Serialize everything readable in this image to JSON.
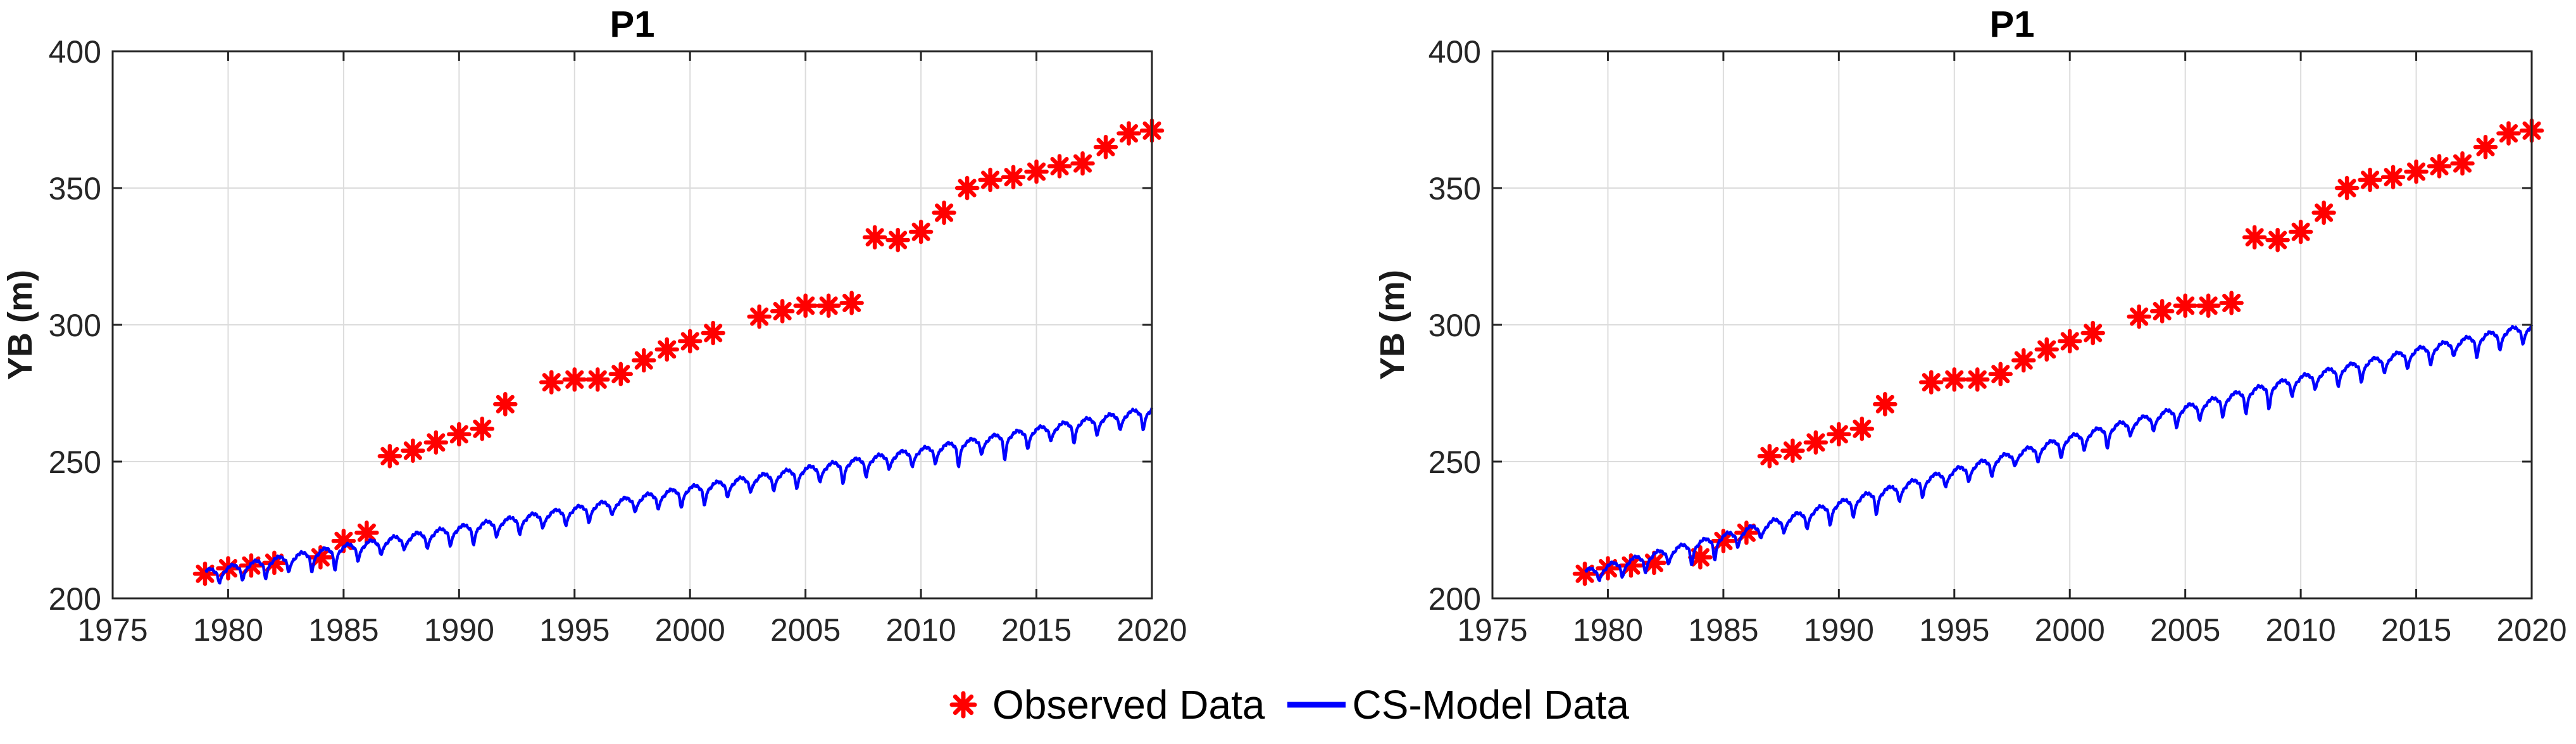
{
  "figure": {
    "background": "#ffffff",
    "axis_color": "#262626",
    "grid_color": "#dcdcdc",
    "observed_color": "#ff0000",
    "model_color": "#0000ff"
  },
  "legend": {
    "items": [
      {
        "marker": "asterisk",
        "color": "#ff0000",
        "label": "Observed Data"
      },
      {
        "marker": "line",
        "color": "#0000ff",
        "label": "CS-Model Data"
      }
    ]
  },
  "chart_data": [
    {
      "type": "line+scatter",
      "title": "P1",
      "xlabel": "",
      "ylabel": "YB (m)",
      "xlim": [
        1975,
        2020
      ],
      "ylim": [
        200,
        400
      ],
      "xticks": [
        1975,
        1980,
        1985,
        1990,
        1995,
        2000,
        2005,
        2010,
        2015,
        2020
      ],
      "yticks": [
        200,
        250,
        300,
        350,
        400
      ],
      "grid": true,
      "legend_position": "south-outside-shared",
      "series": [
        {
          "name": "Observed Data",
          "type": "scatter",
          "marker": "asterisk",
          "color": "#ff0000",
          "points": [
            [
              1979,
              209
            ],
            [
              1980,
              211
            ],
            [
              1981,
              212
            ],
            [
              1982,
              213
            ],
            [
              1984,
              215
            ],
            [
              1985,
              221
            ],
            [
              1986,
              224
            ],
            [
              1987,
              252
            ],
            [
              1988,
              254
            ],
            [
              1989,
              257
            ],
            [
              1990,
              260
            ],
            [
              1991,
              262
            ],
            [
              1992,
              271
            ],
            [
              1994,
              279
            ],
            [
              1995,
              280
            ],
            [
              1996,
              280
            ],
            [
              1997,
              282
            ],
            [
              1998,
              287
            ],
            [
              1999,
              291
            ],
            [
              2000,
              294
            ],
            [
              2001,
              297
            ],
            [
              2003,
              303
            ],
            [
              2004,
              305
            ],
            [
              2005,
              307
            ],
            [
              2006,
              307
            ],
            [
              2007,
              308
            ],
            [
              2008,
              332
            ],
            [
              2009,
              331
            ],
            [
              2010,
              334
            ],
            [
              2011,
              341
            ],
            [
              2012,
              350
            ],
            [
              2013,
              353
            ],
            [
              2014,
              354
            ],
            [
              2015,
              356
            ],
            [
              2016,
              358
            ],
            [
              2017,
              359
            ],
            [
              2018,
              365
            ],
            [
              2019,
              370
            ],
            [
              2020,
              371
            ]
          ]
        },
        {
          "name": "CS-Model Data",
          "type": "line",
          "color": "#0000ff",
          "trend_anchors": [
            [
              1979,
              209
            ],
            [
              1985,
              218
            ],
            [
              1990,
              225
            ],
            [
              1995,
              232
            ],
            [
              2000,
              239.5
            ],
            [
              2005,
              246.5
            ],
            [
              2010,
              253.5
            ],
            [
              2015,
              261
            ],
            [
              2020,
              268.5
            ]
          ],
          "seasonal_amplitude": 1.5,
          "seasonal_dip_center": 0.63,
          "seasonal_dip_width": 0.05,
          "seasonal_dip_depths": [
            3,
            3.5,
            4.5,
            3.5,
            5,
            6,
            4,
            3,
            2.5,
            3.5,
            4,
            5,
            3.5,
            4,
            3,
            3.5,
            4,
            2.5,
            3,
            3.5,
            4.5,
            5,
            3.5,
            3,
            4,
            4.5,
            3.5,
            5.5,
            4.5,
            3,
            3.5,
            4,
            6.5,
            3.5,
            7,
            4.5,
            3,
            5.5,
            4,
            3.5,
            5,
            3
          ]
        }
      ]
    },
    {
      "type": "line+scatter",
      "title": "P1",
      "xlabel": "",
      "ylabel": "YB (m)",
      "xlim": [
        1975,
        2020
      ],
      "ylim": [
        200,
        400
      ],
      "xticks": [
        1975,
        1980,
        1985,
        1990,
        1995,
        2000,
        2005,
        2010,
        2015,
        2020
      ],
      "yticks": [
        200,
        250,
        300,
        350,
        400
      ],
      "grid": true,
      "legend_position": "south-outside-shared",
      "series": [
        {
          "name": "Observed Data",
          "type": "scatter",
          "marker": "asterisk",
          "color": "#ff0000",
          "points": [
            [
              1979,
              209
            ],
            [
              1980,
              211
            ],
            [
              1981,
              212
            ],
            [
              1982,
              213
            ],
            [
              1984,
              215
            ],
            [
              1985,
              221
            ],
            [
              1986,
              224
            ],
            [
              1987,
              252
            ],
            [
              1988,
              254
            ],
            [
              1989,
              257
            ],
            [
              1990,
              260
            ],
            [
              1991,
              262
            ],
            [
              1992,
              271
            ],
            [
              1994,
              279
            ],
            [
              1995,
              280
            ],
            [
              1996,
              280
            ],
            [
              1997,
              282
            ],
            [
              1998,
              287
            ],
            [
              1999,
              291
            ],
            [
              2000,
              294
            ],
            [
              2001,
              297
            ],
            [
              2003,
              303
            ],
            [
              2004,
              305
            ],
            [
              2005,
              307
            ],
            [
              2006,
              307
            ],
            [
              2007,
              308
            ],
            [
              2008,
              332
            ],
            [
              2009,
              331
            ],
            [
              2010,
              334
            ],
            [
              2011,
              341
            ],
            [
              2012,
              350
            ],
            [
              2013,
              353
            ],
            [
              2014,
              354
            ],
            [
              2015,
              356
            ],
            [
              2016,
              358
            ],
            [
              2017,
              359
            ],
            [
              2018,
              365
            ],
            [
              2019,
              370
            ],
            [
              2020,
              371
            ]
          ]
        },
        {
          "name": "CS-Model Data",
          "type": "line",
          "color": "#0000ff",
          "trend_anchors": [
            [
              1979,
              209
            ],
            [
              1985,
              222
            ],
            [
              1990,
              234
            ],
            [
              1995,
              246
            ],
            [
              2000,
              258
            ],
            [
              2005,
              269
            ],
            [
              2010,
              280
            ],
            [
              2015,
              290
            ],
            [
              2020,
              299
            ]
          ],
          "seasonal_amplitude": 1.5,
          "seasonal_dip_center": 0.63,
          "seasonal_dip_width": 0.05,
          "seasonal_dip_depths": [
            2.5,
            3.5,
            4,
            3,
            5.5,
            6,
            3.5,
            2.5,
            3,
            4,
            5,
            4.5,
            6,
            3.5,
            4.5,
            3,
            3.5,
            4,
            2.5,
            3.5,
            4.5,
            4,
            5.5,
            3,
            3.5,
            4.5,
            4,
            5,
            6,
            6.5,
            4,
            3.5,
            4.5,
            5,
            3.5,
            4,
            4.5,
            3,
            5.5,
            4.5,
            4,
            3
          ]
        }
      ]
    }
  ]
}
